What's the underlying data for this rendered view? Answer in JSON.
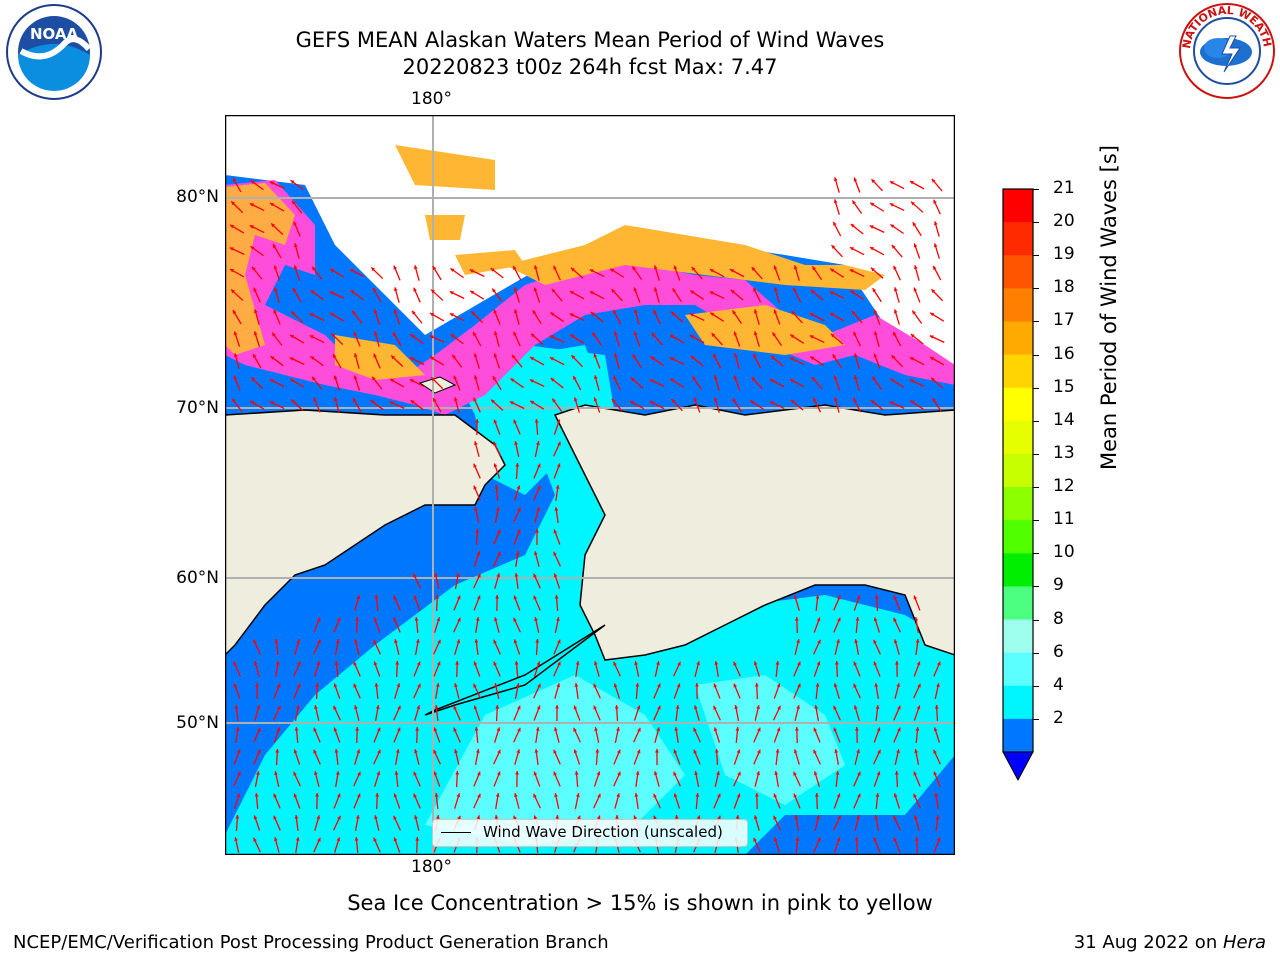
{
  "header": {
    "title_line1": "GEFS MEAN Alaskan Waters Mean Period of Wind Waves",
    "title_line2": "20220823 t00z 264h fcst   Max: 7.47"
  },
  "logos": {
    "left": "NOAA",
    "right": "NATIONAL WEATHER SERVICE"
  },
  "map": {
    "lon_top": "180°",
    "lon_bottom": "180°",
    "lat_labels": [
      "80°N",
      "70°N",
      "60°N",
      "50°N"
    ],
    "legend_label": "Wind Wave Direction (unscaled)",
    "colors": {
      "land": "#efedde",
      "ocean_dark": "#0077ff",
      "ocean_light": "#00f6ff",
      "ocean_pale": "#5cffff",
      "ice_pink": "#ff4ddb",
      "ice_orange": "#ffb733",
      "arrow": "#ff0000"
    }
  },
  "colorbar": {
    "label": "Mean Period of Wind Waves [s]",
    "ticks": [
      "21",
      "20",
      "19",
      "18",
      "17",
      "16",
      "15",
      "14",
      "13",
      "12",
      "11",
      "10",
      "9",
      "8",
      "6",
      "4",
      "2"
    ],
    "colors": [
      "#ff0000",
      "#ff2a00",
      "#ff5500",
      "#ff8000",
      "#ffaa00",
      "#ffd400",
      "#ffff00",
      "#e6ff00",
      "#c8ff00",
      "#8cff00",
      "#50ff00",
      "#00ee00",
      "#4dff80",
      "#9fffef",
      "#5cffff",
      "#00f6ff",
      "#0077ff"
    ],
    "under_color": "#0000ff"
  },
  "footer": {
    "note": "Sea Ice Concentration > 15% is shown in pink to yellow",
    "left": "NCEP/EMC/Verification Post Processing Product Generation Branch",
    "right_date": "31 Aug 2022 on ",
    "right_host": "Hera"
  }
}
